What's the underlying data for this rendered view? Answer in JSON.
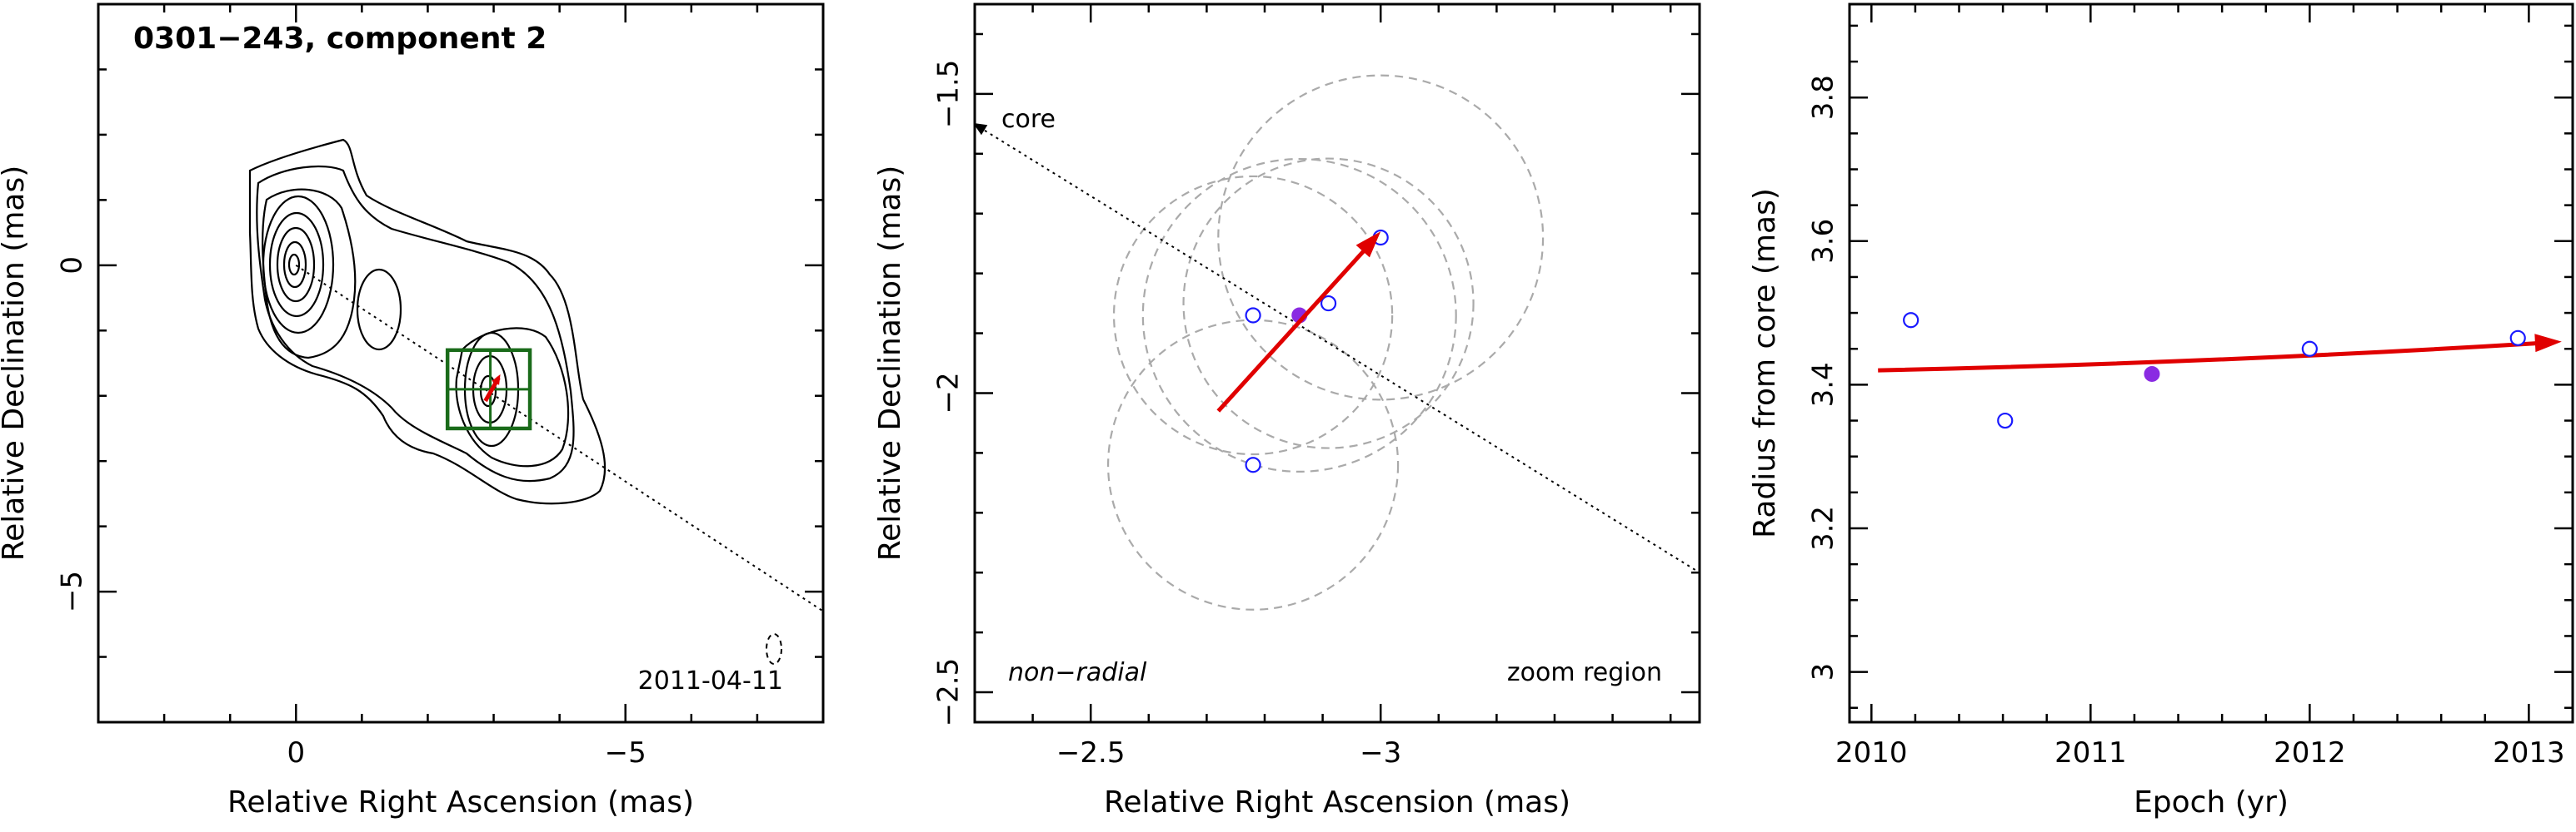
{
  "chart_data": [
    {
      "type": "contour",
      "panel": "image",
      "title": "0301−243, component 2",
      "xlabel": "Relative Right Ascension (mas)",
      "ylabel": "Relative Declination (mas)",
      "xlim": [
        3.0,
        -8.0
      ],
      "ylim": [
        -7.0,
        4.0
      ],
      "xticks": [
        {
          "v": 0,
          "label": "0"
        },
        {
          "v": -5,
          "label": "−5"
        }
      ],
      "yticks": [
        {
          "v": 0,
          "label": "0"
        },
        {
          "v": -5,
          "label": "−5"
        }
      ],
      "epoch_label": "2011-04-11",
      "core": [
        0,
        0
      ],
      "component": [
        -2.95,
        -1.9
      ],
      "zoom_box": {
        "x": [
          -2.3,
          -3.55
        ],
        "y": [
          -1.3,
          -2.5
        ]
      },
      "jet_direction": [
        [
          0,
          0
        ],
        [
          -8.0,
          -5.3
        ]
      ],
      "colors": {
        "box": "#1a6b1a",
        "vector": "#e00000",
        "points": "#1a1aff",
        "mean": "#8a2be2"
      }
    },
    {
      "type": "scatter",
      "panel": "zoom",
      "xlabel": "Relative Right Ascension (mas)",
      "ylabel": "Relative Declination (mas)",
      "xlim": [
        -2.3,
        -3.55
      ],
      "ylim": [
        -2.55,
        -1.35
      ],
      "xticks": [
        {
          "v": -2.5,
          "label": "−2.5"
        },
        {
          "v": -3.0,
          "label": "−3"
        }
      ],
      "yticks": [
        {
          "v": -1.5,
          "label": "−1.5"
        },
        {
          "v": -2.0,
          "label": "−2"
        },
        {
          "v": -2.5,
          "label": "−2.5"
        }
      ],
      "core_label": "core",
      "motion_label": "non−radial",
      "region_label": "zoom region",
      "points": [
        {
          "x": -2.78,
          "y": -1.87
        },
        {
          "x": -2.91,
          "y": -1.85
        },
        {
          "x": -3.0,
          "y": -1.74
        },
        {
          "x": -2.78,
          "y": -2.12
        }
      ],
      "mean_point": {
        "x": -2.86,
        "y": -1.87
      },
      "error_circles": [
        {
          "x": -2.78,
          "y": -1.87,
          "r": 0.24
        },
        {
          "x": -2.91,
          "y": -1.85,
          "r": 0.25
        },
        {
          "x": -3.0,
          "y": -1.74,
          "r": 0.28
        },
        {
          "x": -2.78,
          "y": -2.12,
          "r": 0.25
        },
        {
          "x": -2.86,
          "y": -1.87,
          "r": 0.27
        }
      ],
      "vector": {
        "from": [
          -2.72,
          -2.03
        ],
        "to": [
          -3.0,
          -1.73
        ]
      },
      "core_direction": {
        "from": [
          -2.3,
          -1.55
        ],
        "to": [
          -3.55,
          -2.3
        ]
      }
    },
    {
      "type": "scatter",
      "panel": "radius",
      "xlabel": "Epoch (yr)",
      "ylabel": "Radius from core (mas)",
      "xlim": [
        2009.9,
        2013.2
      ],
      "ylim": [
        2.93,
        3.93
      ],
      "xticks": [
        {
          "v": 2010,
          "label": "2010"
        },
        {
          "v": 2011,
          "label": "2011"
        },
        {
          "v": 2012,
          "label": "2012"
        },
        {
          "v": 2013,
          "label": "2013"
        }
      ],
      "yticks": [
        {
          "v": 3.0,
          "label": "3"
        },
        {
          "v": 3.2,
          "label": "3.2"
        },
        {
          "v": 3.4,
          "label": "3.4"
        },
        {
          "v": 3.6,
          "label": "3.6"
        },
        {
          "v": 3.8,
          "label": "3.8"
        }
      ],
      "points": [
        {
          "x": 2010.18,
          "y": 3.49
        },
        {
          "x": 2010.61,
          "y": 3.35
        },
        {
          "x": 2012.0,
          "y": 3.45
        },
        {
          "x": 2012.95,
          "y": 3.465
        }
      ],
      "mean_point": {
        "x": 2011.28,
        "y": 3.415
      },
      "fit": {
        "from": [
          2010.03,
          3.42
        ],
        "to": [
          2013.15,
          3.46
        ]
      }
    }
  ]
}
